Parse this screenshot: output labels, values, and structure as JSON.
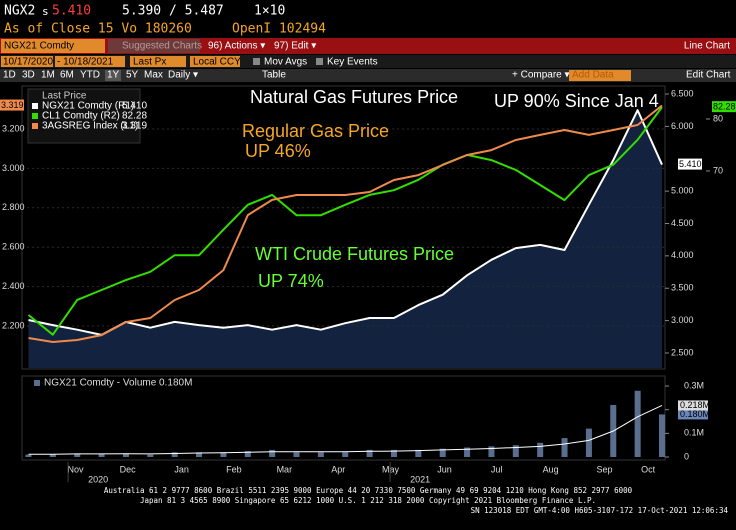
{
  "header": {
    "ticker": "NGX2",
    "source": "s",
    "last": "5.410",
    "bid_ask": "5.390 / 5.487",
    "size": "1×10",
    "line2": "As of Close 15 Vo 180260",
    "open_interest": "OpenI 102494"
  },
  "toolbar": {
    "security": "NGX21 Comdty",
    "suggested": "Suggested Charts",
    "actions": "96) Actions ▾",
    "edit": "97) Edit ▾",
    "chart_kind": "Line Chart",
    "start_date": "10/17/2020",
    "end_date": "- 10/18/2021",
    "field": "Last Px",
    "currency": "Local CCY",
    "mov_avgs": "Mov Avgs",
    "key_events": "Key Events",
    "periods": [
      "1D",
      "3D",
      "1M",
      "6M",
      "YTD",
      "1Y",
      "5Y",
      "Max",
      "Daily ▾"
    ],
    "table": "Table",
    "compare": "+ Compare ▾",
    "add_data": "Add Data",
    "edit_chart": "Edit Chart"
  },
  "chart_data": [
    {
      "type": "line",
      "legend_title": "Last Price",
      "x": [
        "2020-10-19",
        "2020-11-02",
        "2020-11-16",
        "2020-11-30",
        "2020-12-14",
        "2020-12-28",
        "2021-01-11",
        "2021-01-25",
        "2021-02-08",
        "2021-02-22",
        "2021-03-08",
        "2021-03-22",
        "2021-04-05",
        "2021-04-19",
        "2021-05-03",
        "2021-05-17",
        "2021-05-31",
        "2021-06-14",
        "2021-06-28",
        "2021-07-12",
        "2021-07-26",
        "2021-08-09",
        "2021-08-23",
        "2021-09-06",
        "2021-09-20",
        "2021-10-04",
        "2021-10-18"
      ],
      "xlim": [
        "2020-10-17",
        "2021-10-18"
      ],
      "series": [
        {
          "name": "NGX21 Comdty (R1)",
          "last": "5.410",
          "color": "#ffffff",
          "area_color": "#13223f",
          "axis": "y2",
          "values": [
            3.01,
            2.93,
            2.86,
            2.78,
            2.98,
            2.89,
            2.98,
            2.93,
            2.89,
            2.93,
            2.86,
            2.93,
            2.86,
            2.96,
            3.04,
            3.04,
            3.24,
            3.4,
            3.7,
            3.94,
            4.12,
            4.17,
            4.09,
            4.79,
            5.48,
            6.25,
            5.41
          ]
        },
        {
          "name": "CL1 Comdty (R2)",
          "last": "82.28",
          "color": "#33dd00",
          "axis": "y3",
          "values": [
            42.3,
            38.5,
            45.2,
            47.1,
            49.0,
            50.6,
            53.8,
            53.8,
            58.7,
            63.5,
            65.4,
            61.5,
            61.5,
            63.5,
            65.4,
            66.3,
            68.3,
            71.2,
            73.1,
            72.1,
            70.2,
            67.3,
            64.4,
            69.2,
            71.2,
            76.0,
            82.28
          ]
        },
        {
          "name": "3AGSREG Index (L1)",
          "last": "3.319",
          "color": "#f08a4b",
          "axis": "y",
          "values": [
            2.139,
            2.119,
            2.129,
            2.154,
            2.22,
            2.241,
            2.332,
            2.383,
            2.484,
            2.763,
            2.84,
            2.865,
            2.865,
            2.865,
            2.88,
            2.941,
            2.966,
            3.017,
            3.068,
            3.093,
            3.144,
            3.17,
            3.195,
            3.17,
            3.195,
            3.22,
            3.319
          ]
        }
      ],
      "ylim": [
        1.987,
        3.408
      ],
      "yticks": [
        {
          "value": 2.2,
          "label": "2.200"
        },
        {
          "value": 2.4,
          "label": "2.400"
        },
        {
          "value": 2.6,
          "label": "2.600"
        },
        {
          "value": 2.8,
          "label": "2.800"
        },
        {
          "value": 3.0,
          "label": "3.000"
        },
        {
          "value": 3.2,
          "label": "3.200"
        }
      ],
      "y2lim": [
        2.268,
        6.593
      ],
      "y2ticks": [
        {
          "value": 2.5,
          "label": "2.500"
        },
        {
          "value": 3.0,
          "label": "3.000"
        },
        {
          "value": 3.5,
          "label": "3.500"
        },
        {
          "value": 4.0,
          "label": "4.000"
        },
        {
          "value": 4.5,
          "label": "4.500"
        },
        {
          "value": 5.0,
          "label": "5.000"
        },
        {
          "value": 6.0,
          "label": "6.000"
        },
        {
          "value": 6.5,
          "label": "6.500"
        }
      ],
      "y3lim": [
        32.1,
        85.96
      ],
      "y3ticks": [
        70,
        80
      ],
      "grid": true,
      "annotations": [
        {
          "text": "Natural Gas Futures Price",
          "color": "#ffffff"
        },
        {
          "text": "UP 90% Since Jan 4",
          "color": "#ffffff"
        },
        {
          "text": "Regular Gas Price",
          "color": "#f5a623"
        },
        {
          "text": "UP 46%",
          "color": "#f5a623"
        },
        {
          "text": "WTI Crude Futures Price",
          "color": "#66ff33"
        },
        {
          "text": "UP 74%",
          "color": "#66ff33"
        }
      ]
    },
    {
      "type": "bar",
      "title": "NGX21 Comdty - Volume 0.180M",
      "x": [
        "2020-10-19",
        "2020-11-02",
        "2020-11-16",
        "2020-11-30",
        "2020-12-14",
        "2020-12-28",
        "2021-01-11",
        "2021-01-25",
        "2021-02-08",
        "2021-02-22",
        "2021-03-08",
        "2021-03-22",
        "2021-04-05",
        "2021-04-19",
        "2021-05-03",
        "2021-05-17",
        "2021-05-31",
        "2021-06-14",
        "2021-06-28",
        "2021-07-12",
        "2021-07-26",
        "2021-08-09",
        "2021-08-23",
        "2021-09-06",
        "2021-09-20",
        "2021-10-04",
        "2021-10-18"
      ],
      "xlim": [
        "2020-10-17",
        "2021-10-18"
      ],
      "series": [
        {
          "name": "Volume",
          "color": "#5a6f8f",
          "last": "0.180M",
          "values": [
            0.01,
            0.012,
            0.015,
            0.012,
            0.015,
            0.01,
            0.02,
            0.02,
            0.02,
            0.025,
            0.03,
            0.02,
            0.02,
            0.02,
            0.03,
            0.03,
            0.03,
            0.035,
            0.04,
            0.045,
            0.05,
            0.06,
            0.08,
            0.12,
            0.22,
            0.28,
            0.18
          ]
        },
        {
          "name": "Average",
          "color": "#ffffff",
          "last": "0.218M",
          "type": "line",
          "values": [
            0.012,
            0.012,
            0.013,
            0.013,
            0.014,
            0.013,
            0.015,
            0.017,
            0.018,
            0.02,
            0.022,
            0.022,
            0.022,
            0.022,
            0.024,
            0.025,
            0.027,
            0.03,
            0.033,
            0.036,
            0.04,
            0.045,
            0.055,
            0.07,
            0.11,
            0.17,
            0.218
          ]
        }
      ],
      "ylim": [
        0,
        0.334
      ],
      "yticks": [
        0,
        {
          "value": 0.1,
          "label": "0.1M"
        },
        {
          "value": 0.2,
          "label": "0.2M"
        },
        {
          "value": 0.3,
          "label": "0.3M"
        }
      ],
      "xticks": [
        {
          "value": "2020-11-15",
          "label": "Nov"
        },
        {
          "value": "2020-12-15",
          "label": "Dec"
        },
        {
          "value": "2021-01-15",
          "label": "Jan"
        },
        {
          "value": "2021-02-14",
          "label": "Feb"
        },
        {
          "value": "2021-03-15",
          "label": "Mar"
        },
        {
          "value": "2021-04-15",
          "label": "Apr"
        },
        {
          "value": "2021-05-15",
          "label": "May"
        },
        {
          "value": "2021-06-15",
          "label": "Jun"
        },
        {
          "value": "2021-07-15",
          "label": "Jul"
        },
        {
          "value": "2021-08-15",
          "label": "Aug"
        },
        {
          "value": "2021-09-15",
          "label": "Sep"
        },
        {
          "value": "2021-10-10",
          "label": "Oct"
        }
      ],
      "year_labels": [
        {
          "value": "2020-11-28",
          "label": "2020"
        },
        {
          "value": "2021-06-01",
          "label": "2021"
        }
      ]
    }
  ],
  "footer": {
    "lines": [
      "Australia 61 2 9777 8600 Brazil 5511 2395 9000 Europe 44 20 7330 7500 Germany 49 69 9204 1210 Hong Kong 852 2977 6000",
      "Japan 81 3 4565 8900        Singapore 65 6212 1000        U.S. 1 212 318 2000        Copyright 2021 Bloomberg Finance L.P.",
      "SN 123018 EDT  GMT-4:00 H605-3107-172 17-Oct-2021 12:06:34"
    ]
  }
}
